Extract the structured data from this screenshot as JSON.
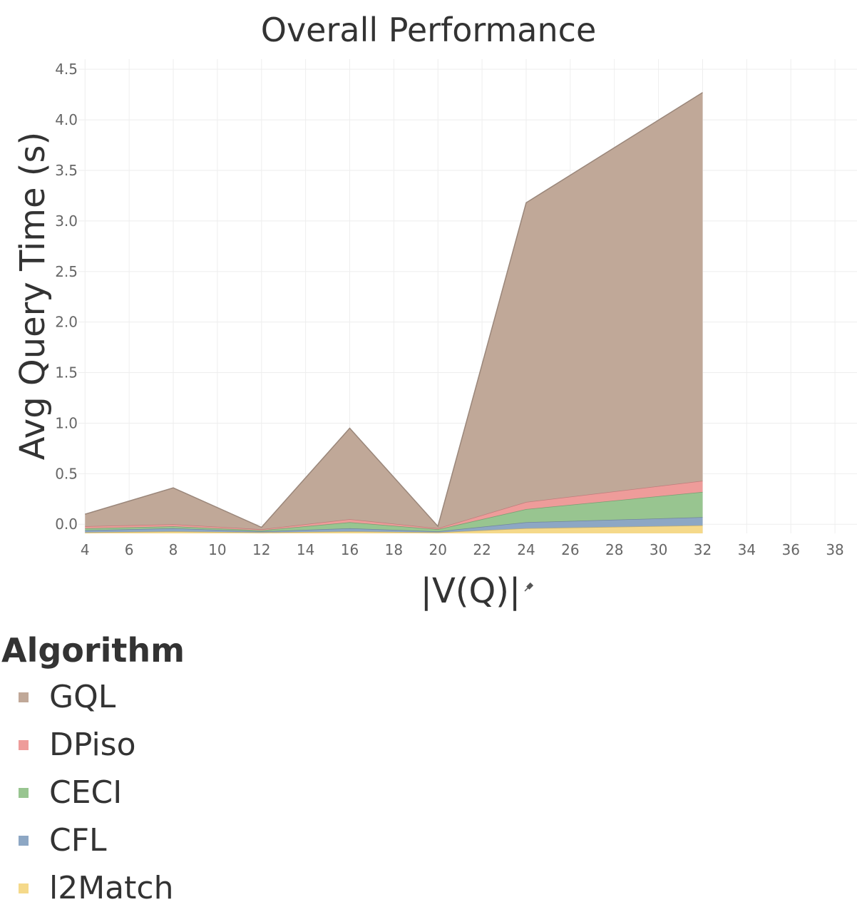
{
  "chart_data": {
    "type": "area",
    "stacked": true,
    "title": "Overall Performance",
    "xlabel": "|V(Q)|",
    "ylabel": "Avg Query Time (s)",
    "xlim": [
      3.7,
      39
    ],
    "ylim": [
      -0.09,
      4.6
    ],
    "xticks": [
      4,
      6,
      8,
      10,
      12,
      14,
      16,
      18,
      20,
      22,
      24,
      26,
      28,
      30,
      32,
      34,
      36,
      38
    ],
    "yticks": [
      0.0,
      0.5,
      1.0,
      1.5,
      2.0,
      2.5,
      3.0,
      3.5,
      4.0,
      4.5
    ],
    "ytick_labels": [
      "0.0",
      "0.5",
      "1.0",
      "1.5",
      "2.0",
      "2.5",
      "3.0",
      "3.5",
      "4.0",
      "4.5"
    ],
    "x": [
      4,
      8,
      12,
      16,
      20,
      24,
      32
    ],
    "series": [
      {
        "name": "l2Match",
        "color": "#f5d98a",
        "values": [
          -0.08,
          -0.07,
          -0.08,
          -0.07,
          -0.08,
          -0.04,
          -0.01
        ]
      },
      {
        "name": "CFL",
        "color": "#8da7c4",
        "values": [
          0.02,
          0.03,
          0.01,
          0.03,
          0.01,
          0.06,
          0.08
        ]
      },
      {
        "name": "CECI",
        "color": "#98c590",
        "values": [
          0.02,
          0.02,
          0.01,
          0.06,
          0.02,
          0.13,
          0.25
        ]
      },
      {
        "name": "DPiso",
        "color": "#ee9c9a",
        "values": [
          0.02,
          0.02,
          0.01,
          0.03,
          0.01,
          0.07,
          0.11
        ]
      },
      {
        "name": "GQL",
        "color": "#c0a898",
        "values": [
          0.12,
          0.36,
          0.02,
          0.9,
          0.02,
          2.96,
          3.84
        ]
      }
    ],
    "grid": true,
    "legend": {
      "title": "Algorithm",
      "position": "bottom-left"
    }
  },
  "legend_order": [
    "GQL",
    "DPiso",
    "CECI",
    "CFL",
    "l2Match"
  ]
}
